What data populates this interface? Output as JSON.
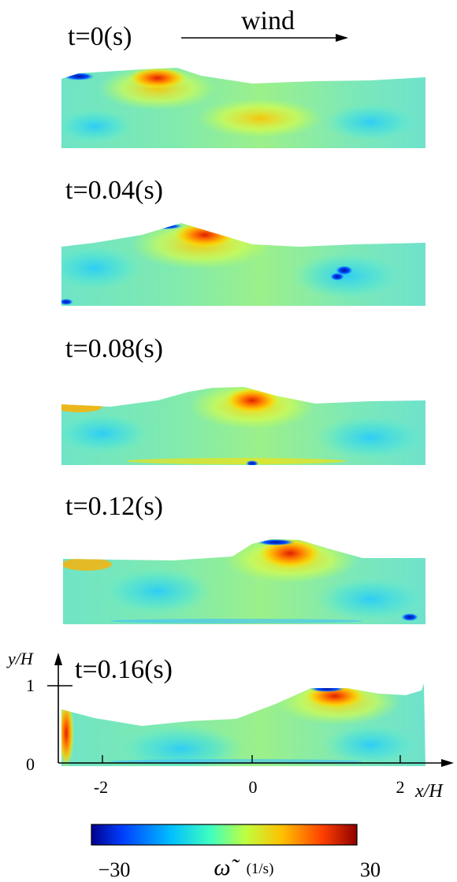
{
  "wind_label": "wind",
  "panels": [
    {
      "time_label": "t=0(s)"
    },
    {
      "time_label": "t=0.04(s)"
    },
    {
      "time_label": "t=0.08(s)"
    },
    {
      "time_label": "t=0.12(s)"
    },
    {
      "time_label": "t=0.16(s)"
    }
  ],
  "axes": {
    "y_label": "y/H",
    "x_label": "x/H",
    "y_ticks": [
      "1",
      "0"
    ],
    "x_ticks": [
      "-2",
      "0",
      "2"
    ]
  },
  "colorbar": {
    "min_label": "−30",
    "max_label": "30",
    "variable_symbol": "ω̃",
    "units": "(1/s)",
    "min": -30,
    "max": 30,
    "colors": [
      "#00008f",
      "#0040ff",
      "#00bfff",
      "#40ffbf",
      "#bfff40",
      "#ffbf00",
      "#ff4000",
      "#8f0000"
    ]
  }
}
